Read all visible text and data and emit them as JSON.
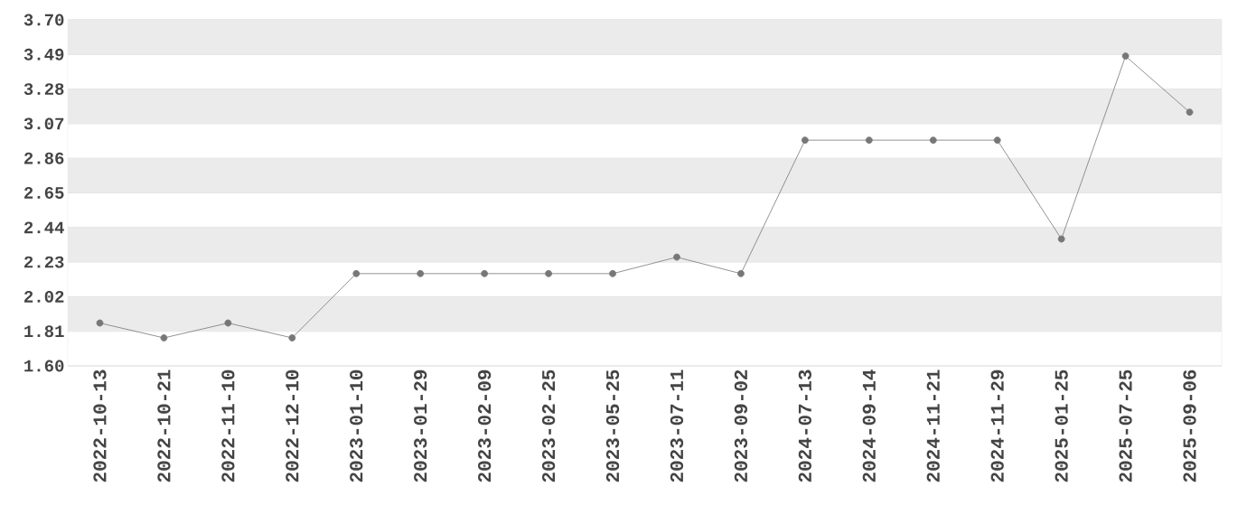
{
  "chart_data": {
    "type": "line",
    "categories": [
      "2022-10-13",
      "2022-10-21",
      "2022-11-10",
      "2022-12-10",
      "2023-01-10",
      "2023-01-29",
      "2023-02-09",
      "2023-02-25",
      "2023-05-25",
      "2023-07-11",
      "2023-09-02",
      "2024-07-13",
      "2024-09-14",
      "2024-11-21",
      "2024-11-29",
      "2025-01-25",
      "2025-07-25",
      "2025-09-06"
    ],
    "values": [
      1.86,
      1.77,
      1.86,
      1.77,
      2.16,
      2.16,
      2.16,
      2.16,
      2.16,
      2.26,
      2.16,
      2.97,
      2.97,
      2.97,
      2.97,
      2.37,
      3.48,
      3.14
    ],
    "color": "#777777",
    "ylim": [
      1.6,
      3.7
    ],
    "yticks": [
      {
        "value": 1.6,
        "label": "1.60"
      },
      {
        "value": 1.81,
        "label": "1.81"
      },
      {
        "value": 2.02,
        "label": "2.02"
      },
      {
        "value": 2.23,
        "label": "2.23"
      },
      {
        "value": 2.44,
        "label": "2.44"
      },
      {
        "value": 2.65,
        "label": "2.65"
      },
      {
        "value": 2.86,
        "label": "2.86"
      },
      {
        "value": 3.07,
        "label": "3.07"
      },
      {
        "value": 3.28,
        "label": "3.28"
      },
      {
        "value": 3.49,
        "label": "3.49"
      },
      {
        "value": 3.7,
        "label": "3.70"
      }
    ],
    "grid": "y",
    "marker": "circle",
    "line_style": "solid"
  }
}
